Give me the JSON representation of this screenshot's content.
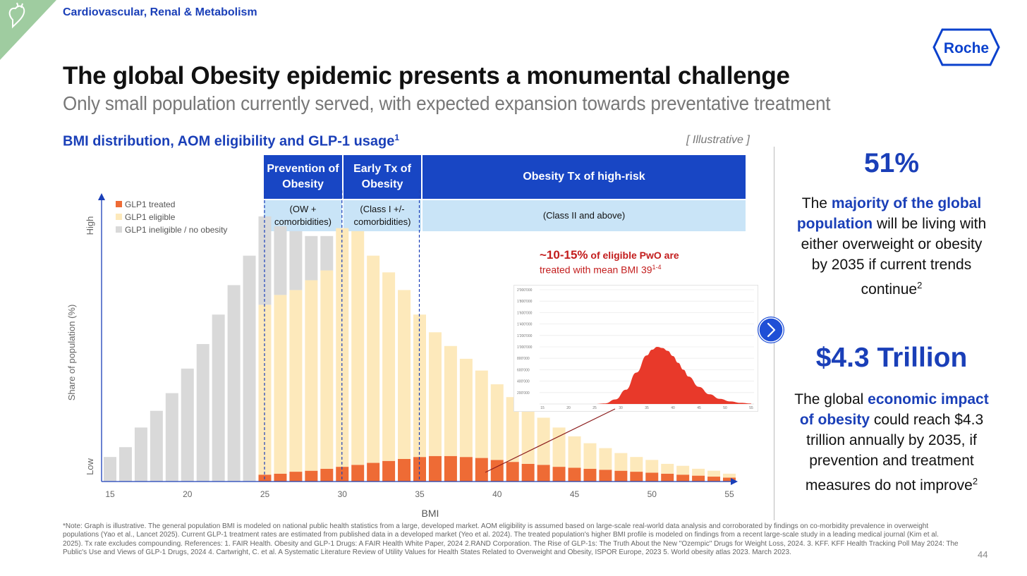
{
  "header": {
    "division": "Cardiovascular, Renal & Metabolism",
    "logo_text": "Roche",
    "title": "The global Obesity epidemic presents a monumental challenge",
    "subtitle": "Only small population currently served, with expected expansion towards preventative treatment"
  },
  "section": {
    "title": "BMI distribution, AOM eligibility and GLP-1 usage",
    "title_sup": "1",
    "tag": "[ Illustrative ]"
  },
  "bands": [
    {
      "title": "Prevention of Obesity",
      "sub": "(OW + comorbidities)"
    },
    {
      "title": "Early Tx of Obesity",
      "sub": "(Class I +/- comorbidities)"
    },
    {
      "title": "Obesity Tx of high-risk",
      "sub": "(Class II and above)"
    }
  ],
  "callout": {
    "pct": "~10-15%",
    "rest": " of eligible PwO are",
    "line2": "treated with mean BMI 39",
    "line2_sup": "1-4"
  },
  "chart_data": [
    {
      "type": "bar",
      "stacked": true,
      "xlabel": "BMI",
      "ylabel": "Share of population (%)",
      "y_axis_labels": {
        "low": "Low",
        "high": "High"
      },
      "xlim": [
        15,
        55
      ],
      "xticks": [
        15,
        20,
        25,
        30,
        35,
        40,
        45,
        50,
        55
      ],
      "categories": [
        15,
        16,
        17,
        18,
        19,
        20,
        21,
        22,
        23,
        24,
        25,
        26,
        27,
        28,
        29,
        30,
        31,
        32,
        33,
        34,
        35,
        36,
        37,
        38,
        39,
        40,
        41,
        42,
        43,
        44,
        45,
        46,
        47,
        48,
        49,
        50,
        51,
        52,
        53,
        54,
        55
      ],
      "series": [
        {
          "name": "GLP1 treated",
          "color": "#ee6b35",
          "values": [
            0,
            0,
            0,
            0,
            0,
            0,
            0,
            0,
            0,
            0,
            0.7,
            0.8,
            1.0,
            1.1,
            1.3,
            1.5,
            1.7,
            1.9,
            2.1,
            2.3,
            2.5,
            2.6,
            2.6,
            2.5,
            2.4,
            2.2,
            2.0,
            1.8,
            1.7,
            1.5,
            1.4,
            1.3,
            1.2,
            1.1,
            1.0,
            0.9,
            0.8,
            0.7,
            0.6,
            0.5,
            0.4
          ]
        },
        {
          "name": "GLP1 eligible",
          "color": "#fde9bb",
          "values": [
            0,
            0,
            0,
            0,
            0,
            0,
            0,
            0,
            0,
            0,
            17.3,
            18.2,
            18.5,
            19.4,
            20.2,
            24.3,
            23.8,
            21.1,
            19.2,
            17.2,
            14.5,
            12.6,
            11.2,
            10.0,
            8.9,
            7.7,
            6.6,
            5.5,
            4.8,
            4.0,
            3.2,
            2.6,
            2.2,
            1.8,
            1.5,
            1.3,
            1.0,
            0.9,
            0.7,
            0.6,
            0.4
          ]
        },
        {
          "name": "GLP1 ineligible / no obesity",
          "color": "#d9d9d9",
          "values": [
            2.5,
            3.5,
            5.5,
            7.2,
            9.0,
            11.5,
            14.0,
            17.0,
            20.0,
            23.0,
            9.0,
            7.0,
            6.0,
            4.5,
            3.5,
            0,
            0,
            0,
            0,
            0,
            0,
            0,
            0,
            0,
            0,
            0,
            0,
            0,
            0,
            0,
            0,
            0,
            0,
            0,
            0,
            0,
            0,
            0,
            0,
            0,
            0
          ]
        }
      ],
      "ylim": [
        0,
        28
      ],
      "legend": "top-left",
      "annotation_lines_x": [
        25,
        30,
        35
      ]
    },
    {
      "type": "area",
      "series": [
        {
          "name": "",
          "color": "#e8392a"
        }
      ],
      "x": [
        15,
        20,
        25,
        27,
        29,
        31,
        33,
        35,
        36,
        37,
        38,
        39,
        40,
        41,
        42,
        43,
        45,
        47,
        49,
        51,
        53,
        55
      ],
      "values": [
        0,
        0,
        0,
        10000,
        80000,
        250000,
        550000,
        850000,
        950000,
        1000000,
        980000,
        930000,
        840000,
        720000,
        600000,
        480000,
        300000,
        170000,
        90000,
        45000,
        20000,
        8000
      ],
      "xticks": [
        15,
        20,
        25,
        30,
        35,
        40,
        45,
        50,
        55
      ],
      "yticks": [
        "2'000'000",
        "1'800'000",
        "1'600'000",
        "1'400'000",
        "1'200'000",
        "1'000'000",
        "800'000",
        "600'000",
        "400'000",
        "200'000"
      ],
      "ylim": [
        0,
        2000000
      ],
      "grid": true
    }
  ],
  "right": {
    "stat1": "51%",
    "desc1_a": "The ",
    "desc1_b": "majority of the global population",
    "desc1_c": " will be living with either overweight or obesity by 2035 if current trends continue",
    "desc1_sup": "2",
    "stat2": "$4.3 Trillion",
    "desc2_a": "The global ",
    "desc2_b": "economic impact of obesity",
    "desc2_c": " could reach $4.3 trillion annually by 2035, if prevention and treatment measures do not improve",
    "desc2_sup": "2"
  },
  "footnote": "*Note: Graph is illustrative. The general population BMI is modeled on national public health statistics from a large, developed market. AOM eligibility is assumed based on large-scale real-world data analysis and corroborated by findings on co-morbidity prevalence in overweight populations (Yao et al., Lancet 2025). Current GLP-1 treatment rates are estimated from published data in a developed market (Yeo et al. 2024). The treated population's higher BMI profile is modeled on findings from a recent large-scale study in a leading medical journal (Kim et al. 2025). Tx rate excludes compounding. References: 1. FAIR Health. Obesity and GLP-1 Drugs: A FAIR Health White Paper, 2024 2.RAND Corporation. The Rise of GLP-1s: The Truth About the New \"Ozempic\" Drugs for Weight Loss, 2024. 3. KFF. KFF Health Tracking Poll May 2024: The Public's Use and Views of GLP-1 Drugs, 2024 4. Cartwright, C. et al. A Systematic Literature Review of Utility Values for Health States Related to Overweight and Obesity, ISPOR Europe, 2023 5. World obesity atlas 2023. March 2023.",
  "page_number": "44",
  "colors": {
    "accent": "#1a3fb8",
    "band_dark": "#1846c4",
    "band_light": "#c9e4f7",
    "callout": "#c31d1d"
  }
}
